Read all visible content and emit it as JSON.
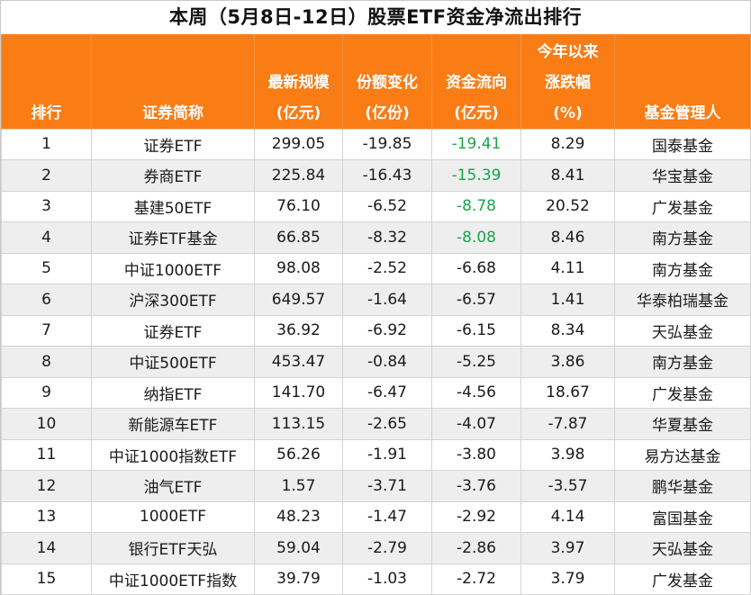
{
  "title": "本周（5月8日-12日）股票ETF资金净流出排行",
  "chart_data": {
    "type": "table",
    "columns": [
      {
        "key": "rank",
        "lines": [
          "排行"
        ]
      },
      {
        "key": "name",
        "lines": [
          "证券简称"
        ]
      },
      {
        "key": "scale",
        "lines": [
          "最新规模",
          "(亿元)"
        ]
      },
      {
        "key": "share",
        "lines": [
          "份额变化",
          "(亿份)"
        ]
      },
      {
        "key": "flow",
        "lines": [
          "资金流向",
          "(亿元)"
        ]
      },
      {
        "key": "ytd",
        "lines": [
          "今年以来",
          "涨跌幅",
          "(%)"
        ]
      },
      {
        "key": "manager",
        "lines": [
          "基金管理人"
        ]
      }
    ],
    "rows": [
      {
        "rank": "1",
        "name": "证券ETF",
        "scale": "299.05",
        "share": "-19.85",
        "flow": "-19.41",
        "ytd": "8.29",
        "manager": "国泰基金"
      },
      {
        "rank": "2",
        "name": "券商ETF",
        "scale": "225.84",
        "share": "-16.43",
        "flow": "-15.39",
        "ytd": "8.41",
        "manager": "华宝基金"
      },
      {
        "rank": "3",
        "name": "基建50ETF",
        "scale": "76.10",
        "share": "-6.52",
        "flow": "-8.78",
        "ytd": "20.52",
        "manager": "广发基金"
      },
      {
        "rank": "4",
        "name": "证券ETF基金",
        "scale": "66.85",
        "share": "-8.32",
        "flow": "-8.08",
        "ytd": "8.46",
        "manager": "南方基金"
      },
      {
        "rank": "5",
        "name": "中证1000ETF",
        "scale": "98.08",
        "share": "-2.52",
        "flow": "-6.68",
        "ytd": "4.11",
        "manager": "南方基金"
      },
      {
        "rank": "6",
        "name": "沪深300ETF",
        "scale": "649.57",
        "share": "-1.64",
        "flow": "-6.57",
        "ytd": "1.41",
        "manager": "华泰柏瑞基金"
      },
      {
        "rank": "7",
        "name": "证券ETF",
        "scale": "36.92",
        "share": "-6.92",
        "flow": "-6.15",
        "ytd": "8.34",
        "manager": "天弘基金"
      },
      {
        "rank": "8",
        "name": "中证500ETF",
        "scale": "453.47",
        "share": "-0.84",
        "flow": "-5.25",
        "ytd": "3.86",
        "manager": "南方基金"
      },
      {
        "rank": "9",
        "name": "纳指ETF",
        "scale": "141.70",
        "share": "-6.47",
        "flow": "-4.56",
        "ytd": "18.67",
        "manager": "广发基金"
      },
      {
        "rank": "10",
        "name": "新能源车ETF",
        "scale": "113.15",
        "share": "-2.65",
        "flow": "-4.07",
        "ytd": "-7.87",
        "manager": "华夏基金"
      },
      {
        "rank": "11",
        "name": "中证1000指数ETF",
        "scale": "56.26",
        "share": "-1.91",
        "flow": "-3.80",
        "ytd": "3.98",
        "manager": "易方达基金"
      },
      {
        "rank": "12",
        "name": "油气ETF",
        "scale": "1.57",
        "share": "-3.71",
        "flow": "-3.76",
        "ytd": "-3.57",
        "manager": "鹏华基金"
      },
      {
        "rank": "13",
        "name": "1000ETF",
        "scale": "48.23",
        "share": "-1.47",
        "flow": "-2.92",
        "ytd": "4.14",
        "manager": "富国基金"
      },
      {
        "rank": "14",
        "name": "银行ETF天弘",
        "scale": "59.04",
        "share": "-2.79",
        "flow": "-2.86",
        "ytd": "3.97",
        "manager": "天弘基金"
      },
      {
        "rank": "15",
        "name": "中证1000ETF指数",
        "scale": "39.79",
        "share": "-1.03",
        "flow": "-2.72",
        "ytd": "3.79",
        "manager": "广发基金"
      }
    ],
    "highlight": {
      "column": "flow",
      "rows": 4,
      "color": "#18a64a"
    },
    "colors": {
      "header_bg": "#fa7c14",
      "header_text": "#ffffff",
      "stripe": "#eeeeee"
    }
  }
}
